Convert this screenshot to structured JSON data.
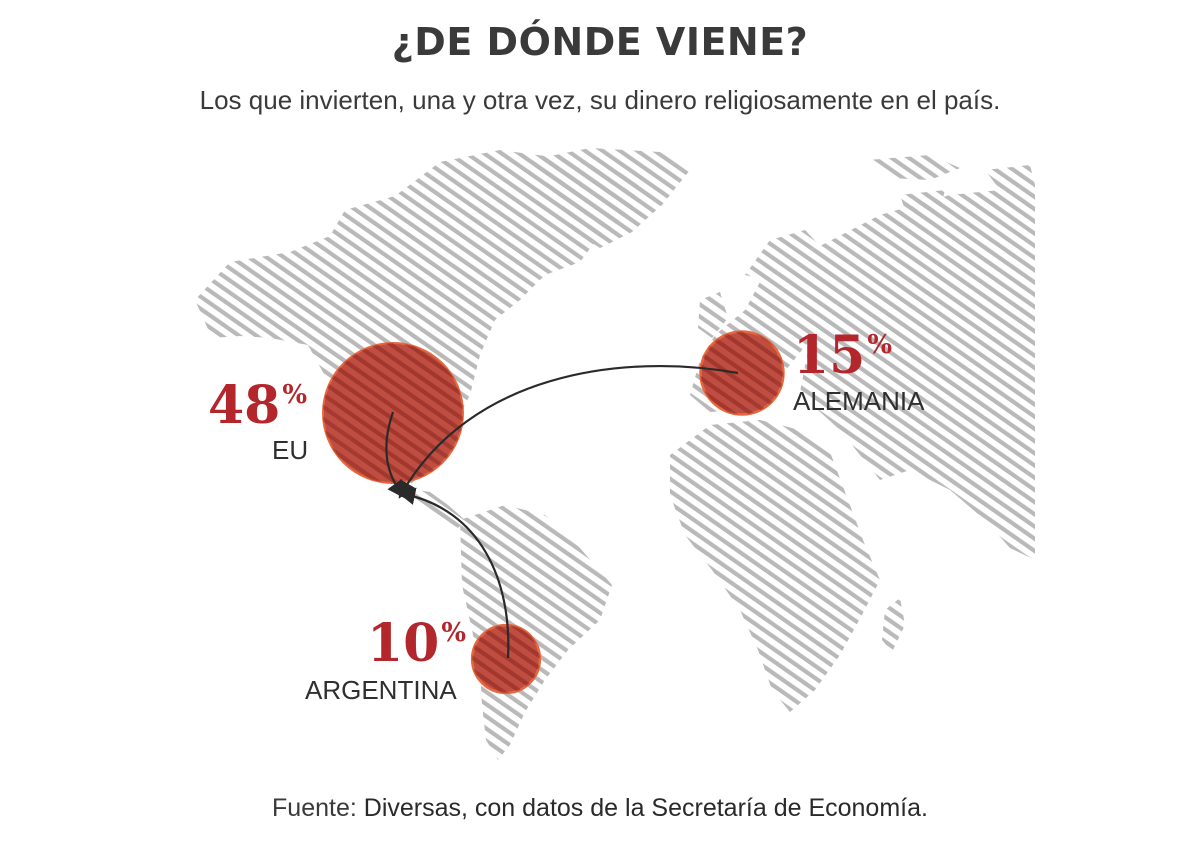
{
  "header": {
    "title": "¿DE DÓNDE VIENE?",
    "subtitle": "Los que invierten, una y otra vez, su dinero religiosamente en el país."
  },
  "colors": {
    "accent": "#b3262b",
    "bubble_fill": "#b83a2e",
    "bubble_stroke": "#e8683e",
    "map_lines": "#b9b9b9",
    "arrow": "#2a2a2a"
  },
  "countries": [
    {
      "id": "eu",
      "value": 48,
      "percent": "48",
      "symbol": "%",
      "name": "EU"
    },
    {
      "id": "alemania",
      "value": 15,
      "percent": "15",
      "symbol": "%",
      "name": "ALEMANIA"
    },
    {
      "id": "argentina",
      "value": 10,
      "percent": "10",
      "symbol": "%",
      "name": "ARGENTINA"
    }
  ],
  "source": {
    "prefix": "Fuente:",
    "text": "Diversas, con datos de la Secretaría de Economía."
  }
}
